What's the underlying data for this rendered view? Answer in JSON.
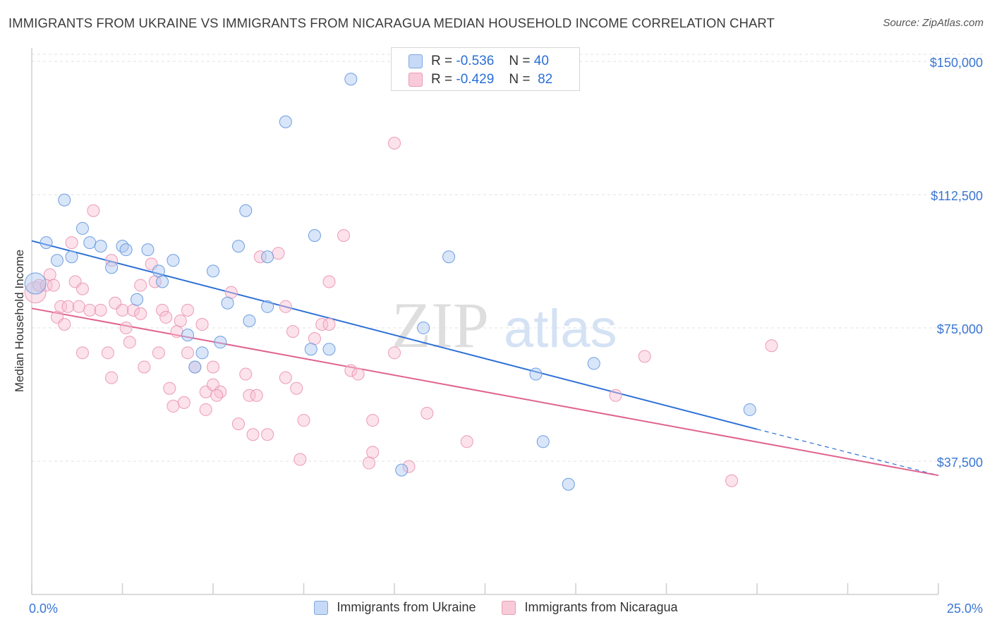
{
  "title": "IMMIGRANTS FROM UKRAINE VS IMMIGRANTS FROM NICARAGUA MEDIAN HOUSEHOLD INCOME CORRELATION CHART",
  "source": "Source: ZipAtlas.com",
  "watermark": {
    "zip": "ZIP",
    "atlas": "atlas"
  },
  "colors": {
    "ukraine": "#2a6fd6",
    "nicaragua": "#e0638f",
    "ukraine_fill": "#c6d9f7",
    "nicaragua_fill": "#f9cbd9",
    "tick_label": "#3a76d4"
  },
  "stats": {
    "ukraine": {
      "r_label": "R =",
      "r_value": "-0.536",
      "n_label": "N =",
      "n_value": "40"
    },
    "nicaragua": {
      "r_label": "R =",
      "r_value": "-0.429",
      "n_label": "N =",
      "n_value": "82"
    }
  },
  "legend": {
    "ukraine": "Immigrants from Ukraine",
    "nicaragua": "Immigrants from Nicaragua"
  },
  "chart_data": {
    "type": "scatter",
    "ylabel": "Median Household Income",
    "xlim": [
      0,
      25
    ],
    "ylim": [
      0,
      152000
    ],
    "x_tick_labels": [
      "0.0%",
      "25.0%"
    ],
    "y_ticks": [
      37500,
      75000,
      112500,
      150000
    ],
    "y_tick_labels": [
      "$37,500",
      "$75,000",
      "$112,500",
      "$150,000"
    ],
    "grid": true,
    "legend_position": "bottom",
    "series": [
      {
        "name": "Immigrants from Ukraine",
        "color": "#2a6fd6",
        "trend": {
          "x": [
            0,
            20
          ],
          "y": [
            99500,
            46500
          ],
          "dashed_extension": [
            20,
            25
          ],
          "dashed_end_y": 33500
        },
        "points": [
          [
            0.1,
            87500
          ],
          [
            0.4,
            99000
          ],
          [
            0.7,
            94000
          ],
          [
            0.9,
            111000
          ],
          [
            1.1,
            95000
          ],
          [
            1.4,
            103000
          ],
          [
            1.6,
            99000
          ],
          [
            1.9,
            98000
          ],
          [
            2.2,
            92000
          ],
          [
            2.5,
            98000
          ],
          [
            2.6,
            97000
          ],
          [
            2.9,
            83000
          ],
          [
            3.2,
            97000
          ],
          [
            3.5,
            91000
          ],
          [
            3.6,
            88000
          ],
          [
            3.9,
            94000
          ],
          [
            4.3,
            73000
          ],
          [
            4.5,
            64000
          ],
          [
            4.7,
            68000
          ],
          [
            5.0,
            91000
          ],
          [
            5.2,
            71000
          ],
          [
            5.4,
            82000
          ],
          [
            5.7,
            98000
          ],
          [
            5.9,
            108000
          ],
          [
            6.0,
            77000
          ],
          [
            6.5,
            95000
          ],
          [
            6.5,
            81000
          ],
          [
            7.0,
            133000
          ],
          [
            7.8,
            101000
          ],
          [
            7.7,
            69000
          ],
          [
            8.2,
            69000
          ],
          [
            8.8,
            145000
          ],
          [
            10.2,
            35000
          ],
          [
            10.8,
            75000
          ],
          [
            11.5,
            95000
          ],
          [
            13.9,
            62000
          ],
          [
            14.1,
            43000
          ],
          [
            14.8,
            31000
          ],
          [
            15.5,
            65000
          ],
          [
            19.8,
            52000
          ]
        ]
      },
      {
        "name": "Immigrants from Nicaragua",
        "color": "#e0638f",
        "trend": {
          "x": [
            0,
            25
          ],
          "y": [
            80500,
            33500
          ]
        },
        "points": [
          [
            0.1,
            85000
          ],
          [
            0.2,
            87000
          ],
          [
            0.4,
            87000
          ],
          [
            0.5,
            90000
          ],
          [
            0.6,
            87000
          ],
          [
            0.7,
            78000
          ],
          [
            0.8,
            81000
          ],
          [
            0.9,
            76000
          ],
          [
            1.0,
            81000
          ],
          [
            1.1,
            99000
          ],
          [
            1.2,
            88000
          ],
          [
            1.3,
            81000
          ],
          [
            1.4,
            86000
          ],
          [
            1.4,
            68000
          ],
          [
            1.6,
            80000
          ],
          [
            1.7,
            108000
          ],
          [
            1.9,
            80000
          ],
          [
            2.1,
            68000
          ],
          [
            2.2,
            61000
          ],
          [
            2.2,
            94000
          ],
          [
            2.3,
            82000
          ],
          [
            2.5,
            80000
          ],
          [
            2.6,
            75000
          ],
          [
            2.7,
            71000
          ],
          [
            2.8,
            80000
          ],
          [
            3.0,
            87000
          ],
          [
            3.0,
            79000
          ],
          [
            3.1,
            64000
          ],
          [
            3.3,
            93000
          ],
          [
            3.4,
            88000
          ],
          [
            3.5,
            68000
          ],
          [
            3.6,
            80000
          ],
          [
            3.7,
            78000
          ],
          [
            3.8,
            58000
          ],
          [
            3.9,
            53000
          ],
          [
            4.0,
            74000
          ],
          [
            4.1,
            77000
          ],
          [
            4.2,
            54000
          ],
          [
            4.3,
            80000
          ],
          [
            4.3,
            68000
          ],
          [
            4.5,
            64000
          ],
          [
            4.7,
            76000
          ],
          [
            4.8,
            57000
          ],
          [
            4.8,
            52000
          ],
          [
            5.0,
            59000
          ],
          [
            5.0,
            64000
          ],
          [
            5.2,
            57000
          ],
          [
            5.1,
            56000
          ],
          [
            5.5,
            85000
          ],
          [
            5.7,
            48000
          ],
          [
            5.9,
            62000
          ],
          [
            6.0,
            56000
          ],
          [
            6.1,
            45000
          ],
          [
            6.2,
            56000
          ],
          [
            6.3,
            95000
          ],
          [
            6.5,
            45000
          ],
          [
            6.8,
            96000
          ],
          [
            7.0,
            61000
          ],
          [
            7.0,
            81000
          ],
          [
            7.2,
            74000
          ],
          [
            7.3,
            58000
          ],
          [
            7.4,
            38000
          ],
          [
            7.5,
            49000
          ],
          [
            7.8,
            72000
          ],
          [
            8.0,
            76000
          ],
          [
            8.2,
            88000
          ],
          [
            8.2,
            76000
          ],
          [
            8.6,
            101000
          ],
          [
            8.8,
            63000
          ],
          [
            9.0,
            62000
          ],
          [
            9.3,
            37000
          ],
          [
            9.4,
            40000
          ],
          [
            9.4,
            49000
          ],
          [
            10.0,
            68000
          ],
          [
            10.0,
            127000
          ],
          [
            10.4,
            36000
          ],
          [
            10.9,
            51000
          ],
          [
            12.0,
            43000
          ],
          [
            16.1,
            56000
          ],
          [
            16.9,
            67000
          ],
          [
            19.3,
            32000
          ],
          [
            20.4,
            70000
          ]
        ]
      }
    ]
  }
}
